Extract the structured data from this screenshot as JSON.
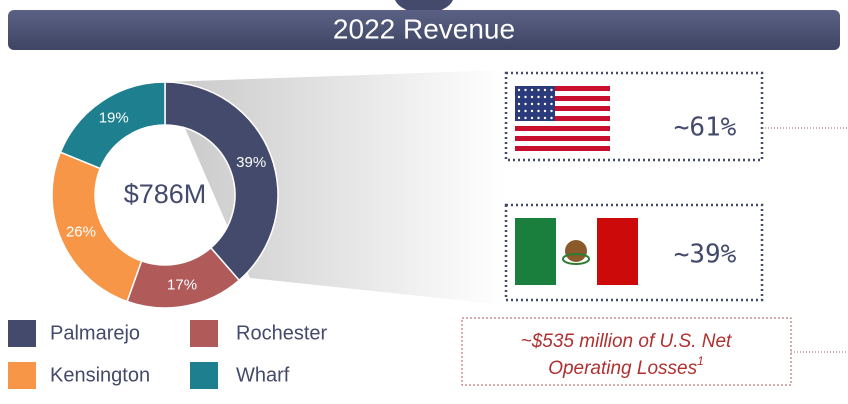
{
  "chart_data": {
    "type": "pie",
    "title": "2022 Revenue",
    "center_label": "$786M",
    "categories": [
      "Palmarejo",
      "Rochester",
      "Kensington",
      "Wharf"
    ],
    "values": [
      39,
      17,
      26,
      19
    ],
    "value_labels": [
      "39%",
      "17%",
      "26%",
      "19%"
    ],
    "colors": [
      "#434a6b",
      "#b05a5a",
      "#f79646",
      "#1e7f8f"
    ]
  },
  "countries": [
    {
      "share": "~61%"
    },
    {
      "share": "~39%"
    }
  ],
  "note": {
    "text": "~$535 million of U.S. Net Operating Losses",
    "footnote": "1"
  }
}
